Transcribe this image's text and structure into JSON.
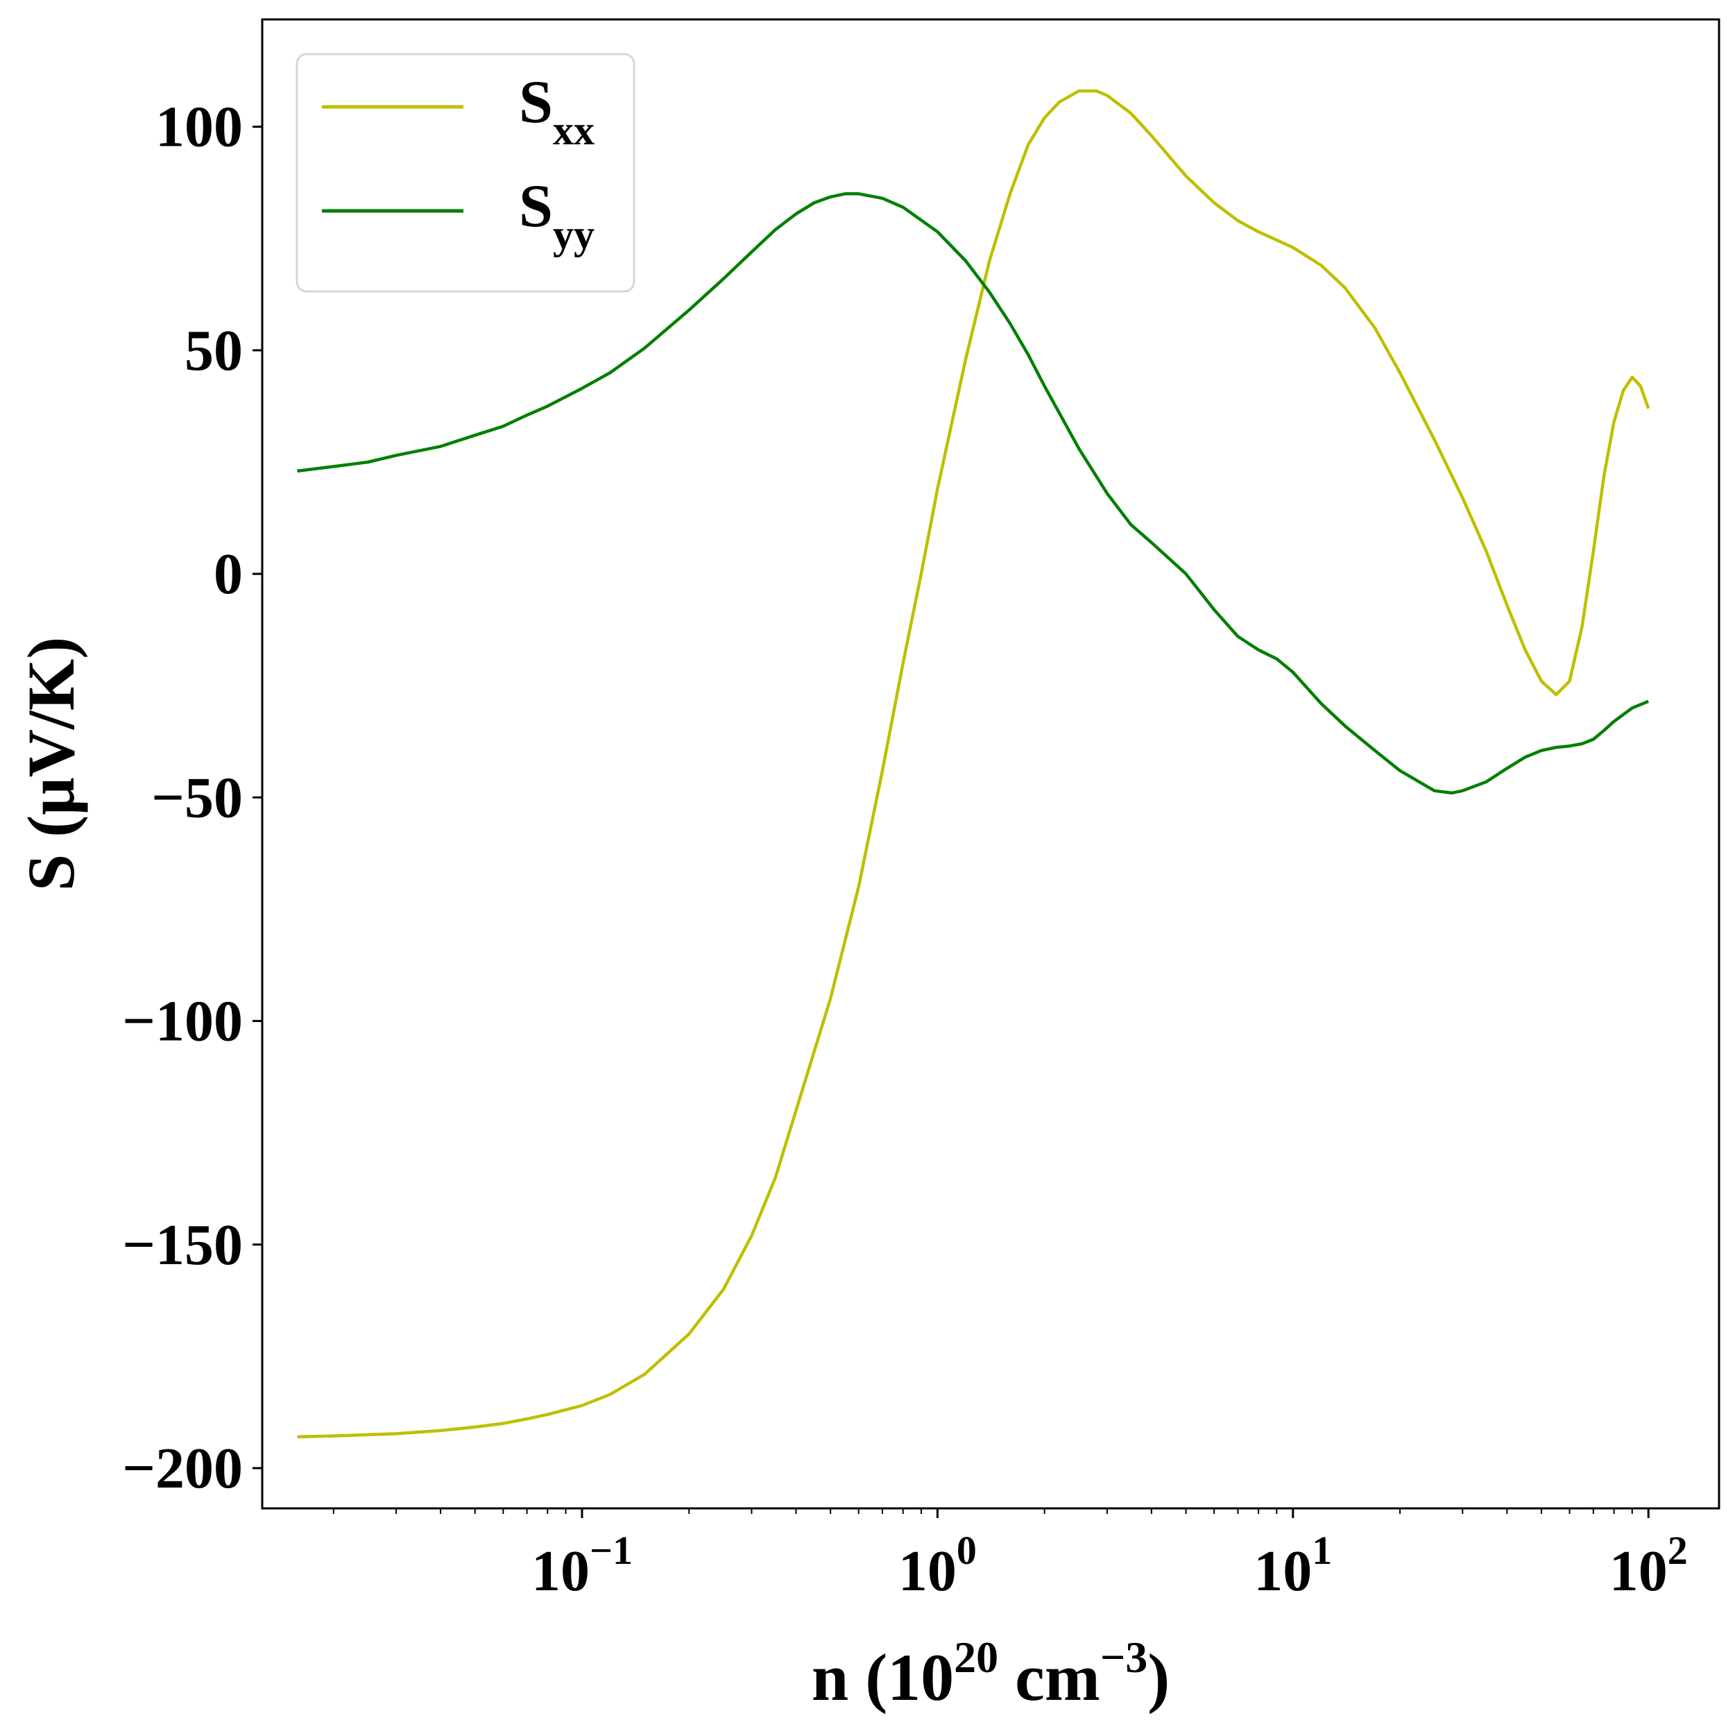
{
  "chart_data": {
    "type": "line",
    "xscale": "log",
    "xlim": [
      0.0126,
      158
    ],
    "ylim": [
      -209,
      124
    ],
    "xticks": [
      {
        "value": 0.1,
        "base": "10",
        "exp": "−1"
      },
      {
        "value": 1,
        "base": "10",
        "exp": "0"
      },
      {
        "value": 10,
        "base": "10",
        "exp": "1"
      },
      {
        "value": 100,
        "base": "10",
        "exp": "2"
      }
    ],
    "yticks": [
      {
        "value": 100,
        "label": "100"
      },
      {
        "value": 50,
        "label": "50"
      },
      {
        "value": 0,
        "label": "0"
      },
      {
        "value": -50,
        "label": "−50"
      },
      {
        "value": -100,
        "label": "−100"
      },
      {
        "value": -150,
        "label": "−150"
      },
      {
        "value": -200,
        "label": "−200"
      }
    ],
    "xlabel": {
      "pre": "n (10",
      "sup1": "20",
      "mid": " cm",
      "sup2": "−3",
      "post": ")"
    },
    "ylabel": "S (μV/K)",
    "legend_position": "upper-left",
    "grid": false,
    "series": [
      {
        "name": "S",
        "name_sub": "xx",
        "color": "#bfbf00",
        "points": [
          [
            0.0158,
            -193
          ],
          [
            0.02,
            -192.8
          ],
          [
            0.03,
            -192.3
          ],
          [
            0.04,
            -191.6
          ],
          [
            0.05,
            -190.8
          ],
          [
            0.06,
            -190.0
          ],
          [
            0.07,
            -189.0
          ],
          [
            0.08,
            -188.0
          ],
          [
            0.1,
            -186.0
          ],
          [
            0.12,
            -183.5
          ],
          [
            0.15,
            -179.0
          ],
          [
            0.2,
            -170.0
          ],
          [
            0.25,
            -160.0
          ],
          [
            0.3,
            -148.0
          ],
          [
            0.35,
            -135.0
          ],
          [
            0.4,
            -120.0
          ],
          [
            0.5,
            -95.0
          ],
          [
            0.6,
            -70.0
          ],
          [
            0.7,
            -44.0
          ],
          [
            0.8,
            -20.0
          ],
          [
            0.9,
            0.0
          ],
          [
            1.0,
            19.0
          ],
          [
            1.2,
            48.0
          ],
          [
            1.4,
            70.0
          ],
          [
            1.6,
            85.0
          ],
          [
            1.8,
            96.0
          ],
          [
            2.0,
            102.0
          ],
          [
            2.2,
            105.5
          ],
          [
            2.5,
            108.0
          ],
          [
            2.8,
            108.0
          ],
          [
            3.0,
            107.0
          ],
          [
            3.5,
            103.0
          ],
          [
            4.0,
            98.0
          ],
          [
            5.0,
            89.0
          ],
          [
            6.0,
            83.0
          ],
          [
            7.0,
            79.0
          ],
          [
            8.0,
            76.5
          ],
          [
            10.0,
            73.0
          ],
          [
            12.0,
            69.0
          ],
          [
            14.0,
            64.0
          ],
          [
            17.0,
            55.0
          ],
          [
            20.0,
            45.0
          ],
          [
            25.0,
            30.0
          ],
          [
            30.0,
            17.0
          ],
          [
            35.0,
            5.0
          ],
          [
            40.0,
            -7.0
          ],
          [
            45.0,
            -17.0
          ],
          [
            50.0,
            -24.0
          ],
          [
            55.0,
            -27.0
          ],
          [
            60.0,
            -24.0
          ],
          [
            65.0,
            -12.0
          ],
          [
            70.0,
            5.0
          ],
          [
            75.0,
            22.0
          ],
          [
            80.0,
            34.0
          ],
          [
            85.0,
            41.0
          ],
          [
            90.0,
            44.0
          ],
          [
            95.0,
            42.0
          ],
          [
            100.0,
            37.0
          ]
        ]
      },
      {
        "name": "S",
        "name_sub": "yy",
        "color": "#007f00",
        "points": [
          [
            0.0158,
            23.0
          ],
          [
            0.02,
            24.0
          ],
          [
            0.025,
            25.0
          ],
          [
            0.03,
            26.5
          ],
          [
            0.04,
            28.5
          ],
          [
            0.05,
            31.0
          ],
          [
            0.06,
            33.0
          ],
          [
            0.07,
            35.5
          ],
          [
            0.08,
            37.5
          ],
          [
            0.1,
            41.5
          ],
          [
            0.12,
            45.0
          ],
          [
            0.15,
            50.5
          ],
          [
            0.2,
            59.0
          ],
          [
            0.25,
            66.0
          ],
          [
            0.3,
            72.0
          ],
          [
            0.35,
            77.0
          ],
          [
            0.4,
            80.5
          ],
          [
            0.45,
            83.0
          ],
          [
            0.5,
            84.3
          ],
          [
            0.55,
            85.0
          ],
          [
            0.6,
            85.0
          ],
          [
            0.7,
            84.0
          ],
          [
            0.8,
            82.0
          ],
          [
            1.0,
            76.5
          ],
          [
            1.2,
            70.0
          ],
          [
            1.4,
            63.0
          ],
          [
            1.6,
            56.0
          ],
          [
            1.8,
            49.0
          ],
          [
            2.0,
            42.0
          ],
          [
            2.5,
            28.0
          ],
          [
            3.0,
            18.0
          ],
          [
            3.5,
            11.0
          ],
          [
            4.0,
            7.0
          ],
          [
            5.0,
            0.0
          ],
          [
            6.0,
            -8.0
          ],
          [
            7.0,
            -14.0
          ],
          [
            8.0,
            -17.0
          ],
          [
            9.0,
            -19.0
          ],
          [
            10.0,
            -22.0
          ],
          [
            12.0,
            -29.0
          ],
          [
            14.0,
            -34.0
          ],
          [
            17.0,
            -39.5
          ],
          [
            20.0,
            -44.0
          ],
          [
            25.0,
            -48.5
          ],
          [
            28.0,
            -49.0
          ],
          [
            30.0,
            -48.5
          ],
          [
            35.0,
            -46.5
          ],
          [
            40.0,
            -43.5
          ],
          [
            45.0,
            -41.0
          ],
          [
            50.0,
            -39.5
          ],
          [
            55.0,
            -38.8
          ],
          [
            60.0,
            -38.5
          ],
          [
            65.0,
            -38.0
          ],
          [
            70.0,
            -37.0
          ],
          [
            75.0,
            -35.0
          ],
          [
            80.0,
            -33.0
          ],
          [
            90.0,
            -30.0
          ],
          [
            100.0,
            -28.5
          ]
        ]
      }
    ]
  }
}
